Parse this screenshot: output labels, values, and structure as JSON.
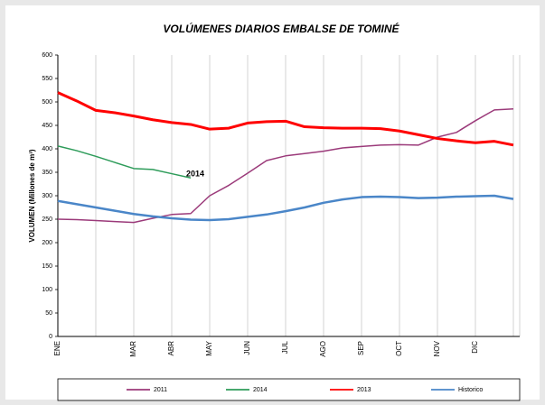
{
  "chart_data": {
    "type": "line",
    "title": "VOLÚMENES DIARIOS EMBALSE DE TOMINÉ",
    "y_label": "VOLUMEN (Millones de m³)",
    "categories": [
      "ENE",
      null,
      null,
      null,
      "MAR",
      null,
      "ABR",
      null,
      "MAY",
      null,
      "JUN",
      null,
      "JUL",
      null,
      "AGO",
      null,
      "SEP",
      null,
      "OCT",
      null,
      "NOV",
      null,
      "DIC",
      null,
      null
    ],
    "series": [
      {
        "name": "2011",
        "color": "#9b3a7a",
        "width": 1.5,
        "values": [
          250,
          249,
          247,
          245,
          243,
          252,
          260,
          262,
          300,
          322,
          348,
          375,
          385,
          390,
          395,
          402,
          405,
          408,
          409,
          408,
          425,
          435,
          460,
          483,
          485
        ]
      },
      {
        "name": "2014",
        "color": "#2e9c5a",
        "width": 1.5,
        "values": [
          406,
          396,
          384,
          371,
          358,
          356,
          347,
          338,
          null,
          null,
          null,
          null,
          null,
          null,
          null,
          null,
          null,
          null,
          null,
          null,
          null,
          null,
          null,
          null,
          null
        ]
      },
      {
        "name": "2013",
        "color": "#ff0000",
        "width": 3,
        "values": [
          520,
          502,
          482,
          477,
          470,
          462,
          456,
          452,
          442,
          444,
          455,
          458,
          459,
          447,
          445,
          444,
          444,
          443,
          438,
          430,
          422,
          417,
          413,
          416,
          408
        ]
      },
      {
        "name": "Historico",
        "color": "#4a86c8",
        "width": 2.5,
        "values": [
          289,
          282,
          275,
          268,
          261,
          256,
          252,
          249,
          248,
          250,
          255,
          260,
          267,
          275,
          285,
          292,
          297,
          298,
          297,
          295,
          296,
          298,
          299,
          300,
          293
        ]
      }
    ],
    "annotations": [
      {
        "text": "2014",
        "series": 1,
        "index": 7
      }
    ],
    "ylim": [
      0,
      600
    ],
    "yticks": [
      0,
      50,
      100,
      150,
      200,
      250,
      300,
      350,
      400,
      450,
      500,
      550,
      600
    ],
    "grid": "x",
    "month_grid_every": 2
  }
}
